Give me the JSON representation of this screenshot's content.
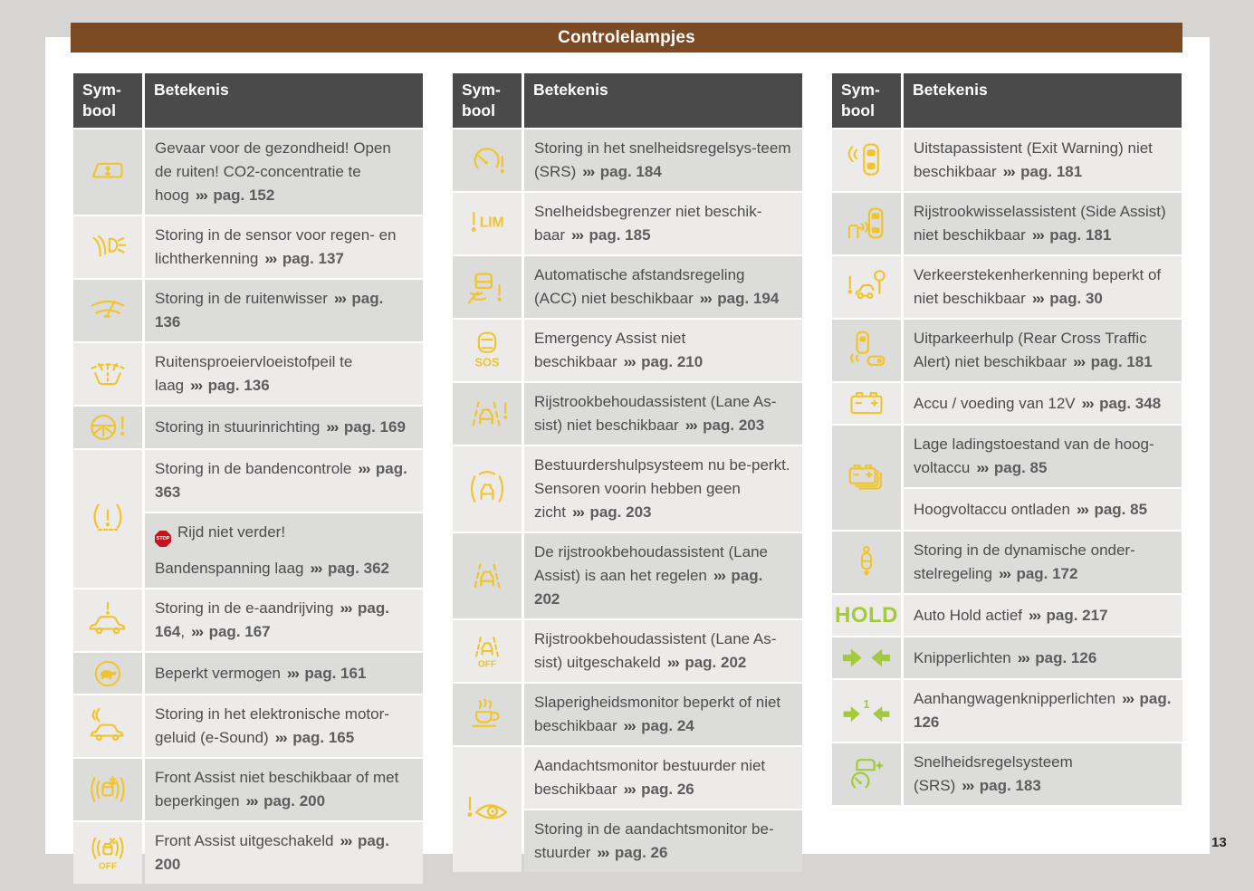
{
  "page": {
    "title": "Controlelampjes",
    "page_number": "13",
    "colors": {
      "background": "#d6d5d3",
      "sheet": "#ffffff",
      "title_bar_brown": "#7b4a23",
      "table_header_gray": "#4a4a4a",
      "row_dark": "#dcdcda",
      "row_light": "#ecebe9",
      "warning_yellow": "#f1c42c",
      "indicator_green": "#a3c93c",
      "stop_red": "#c5121f",
      "text": "#4c4c4e"
    }
  },
  "table_header": {
    "symbol_lines": [
      "Sym-",
      "bool"
    ],
    "meaning": "Betekenis"
  },
  "ref_arrows": "›››",
  "icon_texts": {
    "stop": "STOP",
    "hold": "HOLD",
    "lim": "LIM",
    "sos": "SOS",
    "off": "OFF",
    "one": "1"
  },
  "columns": [
    {
      "first_shade": "dark",
      "rows": [
        {
          "icon": "co2-window-icon",
          "color": "yellow",
          "cells": [
            {
              "paragraphs": [
                [
                  "Gevaar voor de gezondheid! Open de ruiten! CO2-concentratie te hoog",
                  {
                    "ref": "pag. 152"
                  }
                ]
              ]
            }
          ]
        },
        {
          "icon": "rain-light-sensor-icon",
          "color": "yellow",
          "cells": [
            {
              "paragraphs": [
                [
                  "Storing in de sensor voor regen- en lichtherkenning",
                  {
                    "ref": "pag. 137"
                  }
                ]
              ]
            }
          ]
        },
        {
          "icon": "wiper-icon",
          "color": "yellow",
          "cells": [
            {
              "paragraphs": [
                [
                  "Storing in de ruitenwisser",
                  {
                    "ref": "pag. 136"
                  }
                ]
              ]
            }
          ]
        },
        {
          "icon": "washer-fluid-icon",
          "color": "yellow",
          "cells": [
            {
              "paragraphs": [
                [
                  "Ruitensproeiervloeistofpeil te laag",
                  {
                    "ref": "pag. 136"
                  }
                ]
              ]
            }
          ]
        },
        {
          "icon": "steering-warning-icon",
          "color": "yellow",
          "cells": [
            {
              "paragraphs": [
                [
                  "Storing in stuurinrichting",
                  {
                    "ref": "pag. 169"
                  }
                ]
              ]
            }
          ]
        },
        {
          "icon": "tire-pressure-icon",
          "color": "yellow",
          "cells": [
            {
              "paragraphs": [
                [
                  "Storing in de bandencontrole",
                  {
                    "ref": "pag. 363"
                  }
                ]
              ]
            },
            {
              "paragraphs": [
                [
                  {
                    "stop": true
                  },
                  "Rijd niet verder!"
                ],
                [
                  "Bandenspanning laag",
                  {
                    "ref": "pag. 362"
                  }
                ]
              ]
            }
          ]
        },
        {
          "icon": "ev-drive-warning-icon",
          "color": "yellow",
          "cells": [
            {
              "paragraphs": [
                [
                  "Storing in de e-aandrijving",
                  {
                    "ref": "pag. 164"
                  },
                  ",",
                  {
                    "ref": "pag. 167"
                  }
                ]
              ]
            }
          ]
        },
        {
          "icon": "reduced-power-turtle-icon",
          "color": "yellow",
          "cells": [
            {
              "paragraphs": [
                [
                  "Beperkt vermogen",
                  {
                    "ref": "pag. 161"
                  }
                ]
              ]
            }
          ]
        },
        {
          "icon": "e-sound-icon",
          "color": "yellow",
          "cells": [
            {
              "paragraphs": [
                [
                  "Storing in het elektronische motor-geluid (e-Sound)",
                  {
                    "ref": "pag. 165"
                  }
                ]
              ]
            }
          ]
        },
        {
          "icon": "front-assist-icon",
          "color": "yellow",
          "cells": [
            {
              "paragraphs": [
                [
                  "Front Assist niet beschikbaar of met beperkingen",
                  {
                    "ref": "pag. 200"
                  }
                ]
              ]
            }
          ]
        },
        {
          "icon": "front-assist-off-icon",
          "color": "yellow",
          "cells": [
            {
              "paragraphs": [
                [
                  "Front Assist uitgeschakeld",
                  {
                    "ref": "pag. 200"
                  }
                ]
              ]
            }
          ]
        }
      ]
    },
    {
      "first_shade": "dark",
      "rows": [
        {
          "icon": "cruise-control-warning-icon",
          "color": "yellow",
          "cells": [
            {
              "paragraphs": [
                [
                  "Storing in het snelheidsregelsys-teem (SRS)",
                  {
                    "ref": "pag. 184"
                  }
                ]
              ]
            }
          ]
        },
        {
          "icon": "speed-limiter-icon",
          "color": "yellow",
          "cells": [
            {
              "paragraphs": [
                [
                  "Snelheidsbegrenzer niet beschik-baar",
                  {
                    "ref": "pag. 185"
                  }
                ]
              ]
            }
          ]
        },
        {
          "icon": "acc-warning-icon",
          "color": "yellow",
          "cells": [
            {
              "paragraphs": [
                [
                  "Automatische afstandsregeling (ACC) niet beschikbaar",
                  {
                    "ref": "pag. 194"
                  }
                ]
              ]
            }
          ]
        },
        {
          "icon": "emergency-assist-icon",
          "color": "yellow",
          "cells": [
            {
              "paragraphs": [
                [
                  "Emergency Assist niet beschikbaar",
                  {
                    "ref": "pag. 210"
                  }
                ]
              ]
            }
          ]
        },
        {
          "icon": "lane-assist-warning-icon",
          "color": "yellow",
          "cells": [
            {
              "paragraphs": [
                [
                  "Rijstrookbehoudassistent (Lane As-sist) niet beschikbaar",
                  {
                    "ref": "pag. 203"
                  }
                ]
              ]
            }
          ]
        },
        {
          "icon": "front-sensors-blocked-icon",
          "color": "yellow",
          "cells": [
            {
              "paragraphs": [
                [
                  "Bestuurdershulpsysteem nu be-perkt. Sensoren voorin hebben geen zicht",
                  {
                    "ref": "pag. 203"
                  }
                ]
              ]
            }
          ]
        },
        {
          "icon": "lane-assist-active-icon",
          "color": "yellow",
          "cells": [
            {
              "paragraphs": [
                [
                  "De rijstrookbehoudassistent (Lane Assist) is aan het regelen",
                  {
                    "ref": "pag. 202"
                  }
                ]
              ]
            }
          ]
        },
        {
          "icon": "lane-assist-off-icon",
          "color": "yellow",
          "cells": [
            {
              "paragraphs": [
                [
                  "Rijstrookbehoudassistent (Lane As-sist) uitgeschakeld",
                  {
                    "ref": "pag. 202"
                  }
                ]
              ]
            }
          ]
        },
        {
          "icon": "drowsiness-monitor-icon",
          "color": "yellow",
          "cells": [
            {
              "paragraphs": [
                [
                  "Slaperigheidsmonitor beperkt of niet beschikbaar",
                  {
                    "ref": "pag. 24"
                  }
                ]
              ]
            }
          ]
        },
        {
          "icon": "attention-monitor-icon",
          "color": "yellow",
          "cells": [
            {
              "paragraphs": [
                [
                  "Aandachtsmonitor bestuurder niet beschikbaar",
                  {
                    "ref": "pag. 26"
                  }
                ]
              ]
            },
            {
              "paragraphs": [
                [
                  "Storing in de aandachtsmonitor be-stuurder",
                  {
                    "ref": "pag. 26"
                  }
                ]
              ]
            }
          ]
        }
      ]
    },
    {
      "first_shade": "light",
      "rows": [
        {
          "icon": "exit-warning-icon",
          "color": "yellow",
          "cells": [
            {
              "paragraphs": [
                [
                  "Uitstapassistent (Exit Warning) niet beschikbaar",
                  {
                    "ref": "pag. 181"
                  }
                ]
              ]
            }
          ]
        },
        {
          "icon": "side-assist-icon",
          "color": "yellow",
          "cells": [
            {
              "paragraphs": [
                [
                  "Rijstrookwisselassistent (Side Assist) niet beschikbaar",
                  {
                    "ref": "pag. 181"
                  }
                ]
              ]
            }
          ]
        },
        {
          "icon": "traffic-sign-recognition-icon",
          "color": "yellow",
          "cells": [
            {
              "paragraphs": [
                [
                  "Verkeerstekenherkenning beperkt of niet beschikbaar",
                  {
                    "ref": "pag. 30"
                  }
                ]
              ]
            }
          ]
        },
        {
          "icon": "rear-cross-traffic-icon",
          "color": "yellow",
          "cells": [
            {
              "paragraphs": [
                [
                  "Uitparkeerhulp (Rear Cross Traffic Alert) niet beschikbaar",
                  {
                    "ref": "pag. 181"
                  }
                ]
              ]
            }
          ]
        },
        {
          "icon": "battery-12v-icon",
          "color": "yellow",
          "cells": [
            {
              "paragraphs": [
                [
                  "Accu / voeding van 12V",
                  {
                    "ref": "pag. 348"
                  }
                ]
              ]
            }
          ]
        },
        {
          "icon": "high-voltage-battery-icon",
          "color": "yellow",
          "cells": [
            {
              "paragraphs": [
                [
                  "Lage ladingstoestand van de hoog-voltaccu",
                  {
                    "ref": "pag. 85"
                  }
                ]
              ]
            },
            {
              "paragraphs": [
                [
                  "Hoogvoltaccu ontladen",
                  {
                    "ref": "pag. 85"
                  }
                ]
              ]
            }
          ]
        },
        {
          "icon": "suspension-control-icon",
          "color": "yellow",
          "cells": [
            {
              "paragraphs": [
                [
                  "Storing in de dynamische onder-stelregeling",
                  {
                    "ref": "pag. 172"
                  }
                ]
              ]
            }
          ]
        },
        {
          "icon": "auto-hold-icon",
          "color": "green",
          "cells": [
            {
              "paragraphs": [
                [
                  "Auto Hold actief",
                  {
                    "ref": "pag. 217"
                  }
                ]
              ]
            }
          ]
        },
        {
          "icon": "turn-signals-icon",
          "color": "green",
          "cells": [
            {
              "paragraphs": [
                [
                  "Knipperlichten",
                  {
                    "ref": "pag. 126"
                  }
                ]
              ]
            }
          ]
        },
        {
          "icon": "trailer-turn-signals-icon",
          "color": "green",
          "cells": [
            {
              "paragraphs": [
                [
                  "Aanhangwagenknipperlichten",
                  {
                    "ref": "pag. 126"
                  }
                ]
              ]
            }
          ]
        },
        {
          "icon": "cruise-control-active-icon",
          "color": "green",
          "cells": [
            {
              "paragraphs": [
                [
                  "Snelheidsregelsysteem (SRS)",
                  {
                    "ref": "pag. 183"
                  }
                ]
              ]
            }
          ]
        }
      ]
    }
  ]
}
